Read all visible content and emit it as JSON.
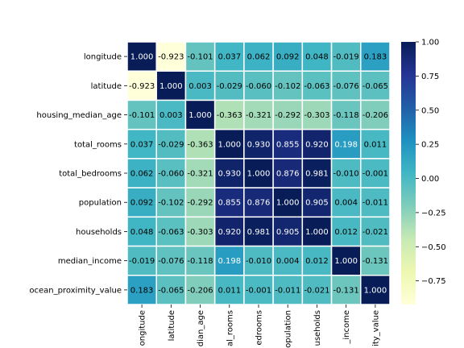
{
  "chart_data": {
    "type": "heatmap",
    "title": "",
    "row_labels": [
      "longitude",
      "latitude",
      "housing_median_age",
      "total_rooms",
      "total_bedrooms",
      "population",
      "households",
      "median_income",
      "ocean_proximity_value"
    ],
    "col_labels": [
      "ongitude",
      "latitude",
      "dian_age",
      "al_rooms",
      "edrooms",
      "opulation",
      "useholds",
      "_income",
      "ity_value"
    ],
    "values": [
      [
        1.0,
        -0.923,
        -0.101,
        0.037,
        0.062,
        0.092,
        0.048,
        -0.019,
        0.183
      ],
      [
        -0.923,
        1.0,
        0.003,
        -0.029,
        -0.06,
        -0.102,
        -0.063,
        -0.076,
        -0.065
      ],
      [
        -0.101,
        0.003,
        1.0,
        -0.363,
        -0.321,
        -0.292,
        -0.303,
        -0.118,
        -0.206
      ],
      [
        0.037,
        -0.029,
        -0.363,
        1.0,
        0.93,
        0.855,
        0.92,
        0.198,
        0.011
      ],
      [
        0.062,
        -0.06,
        -0.321,
        0.93,
        1.0,
        0.876,
        0.981,
        -0.01,
        -0.001
      ],
      [
        0.092,
        -0.102,
        -0.292,
        0.855,
        0.876,
        1.0,
        0.905,
        0.004,
        -0.011
      ],
      [
        0.048,
        -0.063,
        -0.303,
        0.92,
        0.981,
        0.905,
        1.0,
        0.012,
        -0.021
      ],
      [
        -0.019,
        -0.076,
        -0.118,
        0.198,
        -0.01,
        0.004,
        0.012,
        1.0,
        -0.131
      ],
      [
        0.183,
        -0.065,
        -0.206,
        0.011,
        -0.001,
        -0.011,
        -0.021,
        -0.131,
        1.0
      ]
    ],
    "value_labels": [
      [
        "1.000",
        "-0.923",
        "-0.101",
        "0.037",
        "0.062",
        "0.092",
        "0.048",
        "-0.019",
        "0.183"
      ],
      [
        "-0.923",
        "1.000",
        "0.003",
        "-0.029",
        "-0.060",
        "-0.102",
        "-0.063",
        "-0.076",
        "-0.065"
      ],
      [
        "-0.101",
        "0.003",
        "1.000",
        "-0.363",
        "-0.321",
        "-0.292",
        "-0.303",
        "-0.118",
        "-0.206"
      ],
      [
        "0.037",
        "-0.029",
        "-0.363",
        "1.000",
        "0.930",
        "0.855",
        "0.920",
        "0.198",
        "0.011"
      ],
      [
        "0.062",
        "-0.060",
        "-0.321",
        "0.930",
        "1.000",
        "0.876",
        "0.981",
        "-0.010",
        "-0.001"
      ],
      [
        "0.092",
        "-0.102",
        "-0.292",
        "0.855",
        "0.876",
        "1.000",
        "0.905",
        "0.004",
        "-0.011"
      ],
      [
        "0.048",
        "-0.063",
        "-0.303",
        "0.920",
        "0.981",
        "0.905",
        "1.000",
        "0.012",
        "-0.021"
      ],
      [
        "-0.019",
        "-0.076",
        "-0.118",
        "0.198",
        "-0.010",
        "0.004",
        "0.012",
        "1.000",
        "-0.131"
      ],
      [
        "0.183",
        "-0.065",
        "-0.206",
        "0.011",
        "-0.001",
        "-0.011",
        "-0.021",
        "-0.131",
        "1.000"
      ]
    ],
    "colormap": "YlGnBu",
    "colormap_stops": [
      "#ffffd9",
      "#edf8b1",
      "#c7e9b4",
      "#7fcdbb",
      "#41b6c4",
      "#1d91c0",
      "#225ea8",
      "#253494",
      "#081d58"
    ],
    "vmin": -0.923,
    "vmax": 1.0,
    "colorbar_ticks": [
      1.0,
      0.75,
      0.5,
      0.25,
      0.0,
      -0.25,
      -0.5,
      -0.75
    ],
    "colorbar_tick_labels": [
      "1.00",
      "0.75",
      "0.50",
      "0.25",
      "0.00",
      "−0.25",
      "−0.50",
      "−0.75"
    ],
    "cell_border_color": "#ffffff",
    "grid": false,
    "legend": "colorbar-right"
  }
}
